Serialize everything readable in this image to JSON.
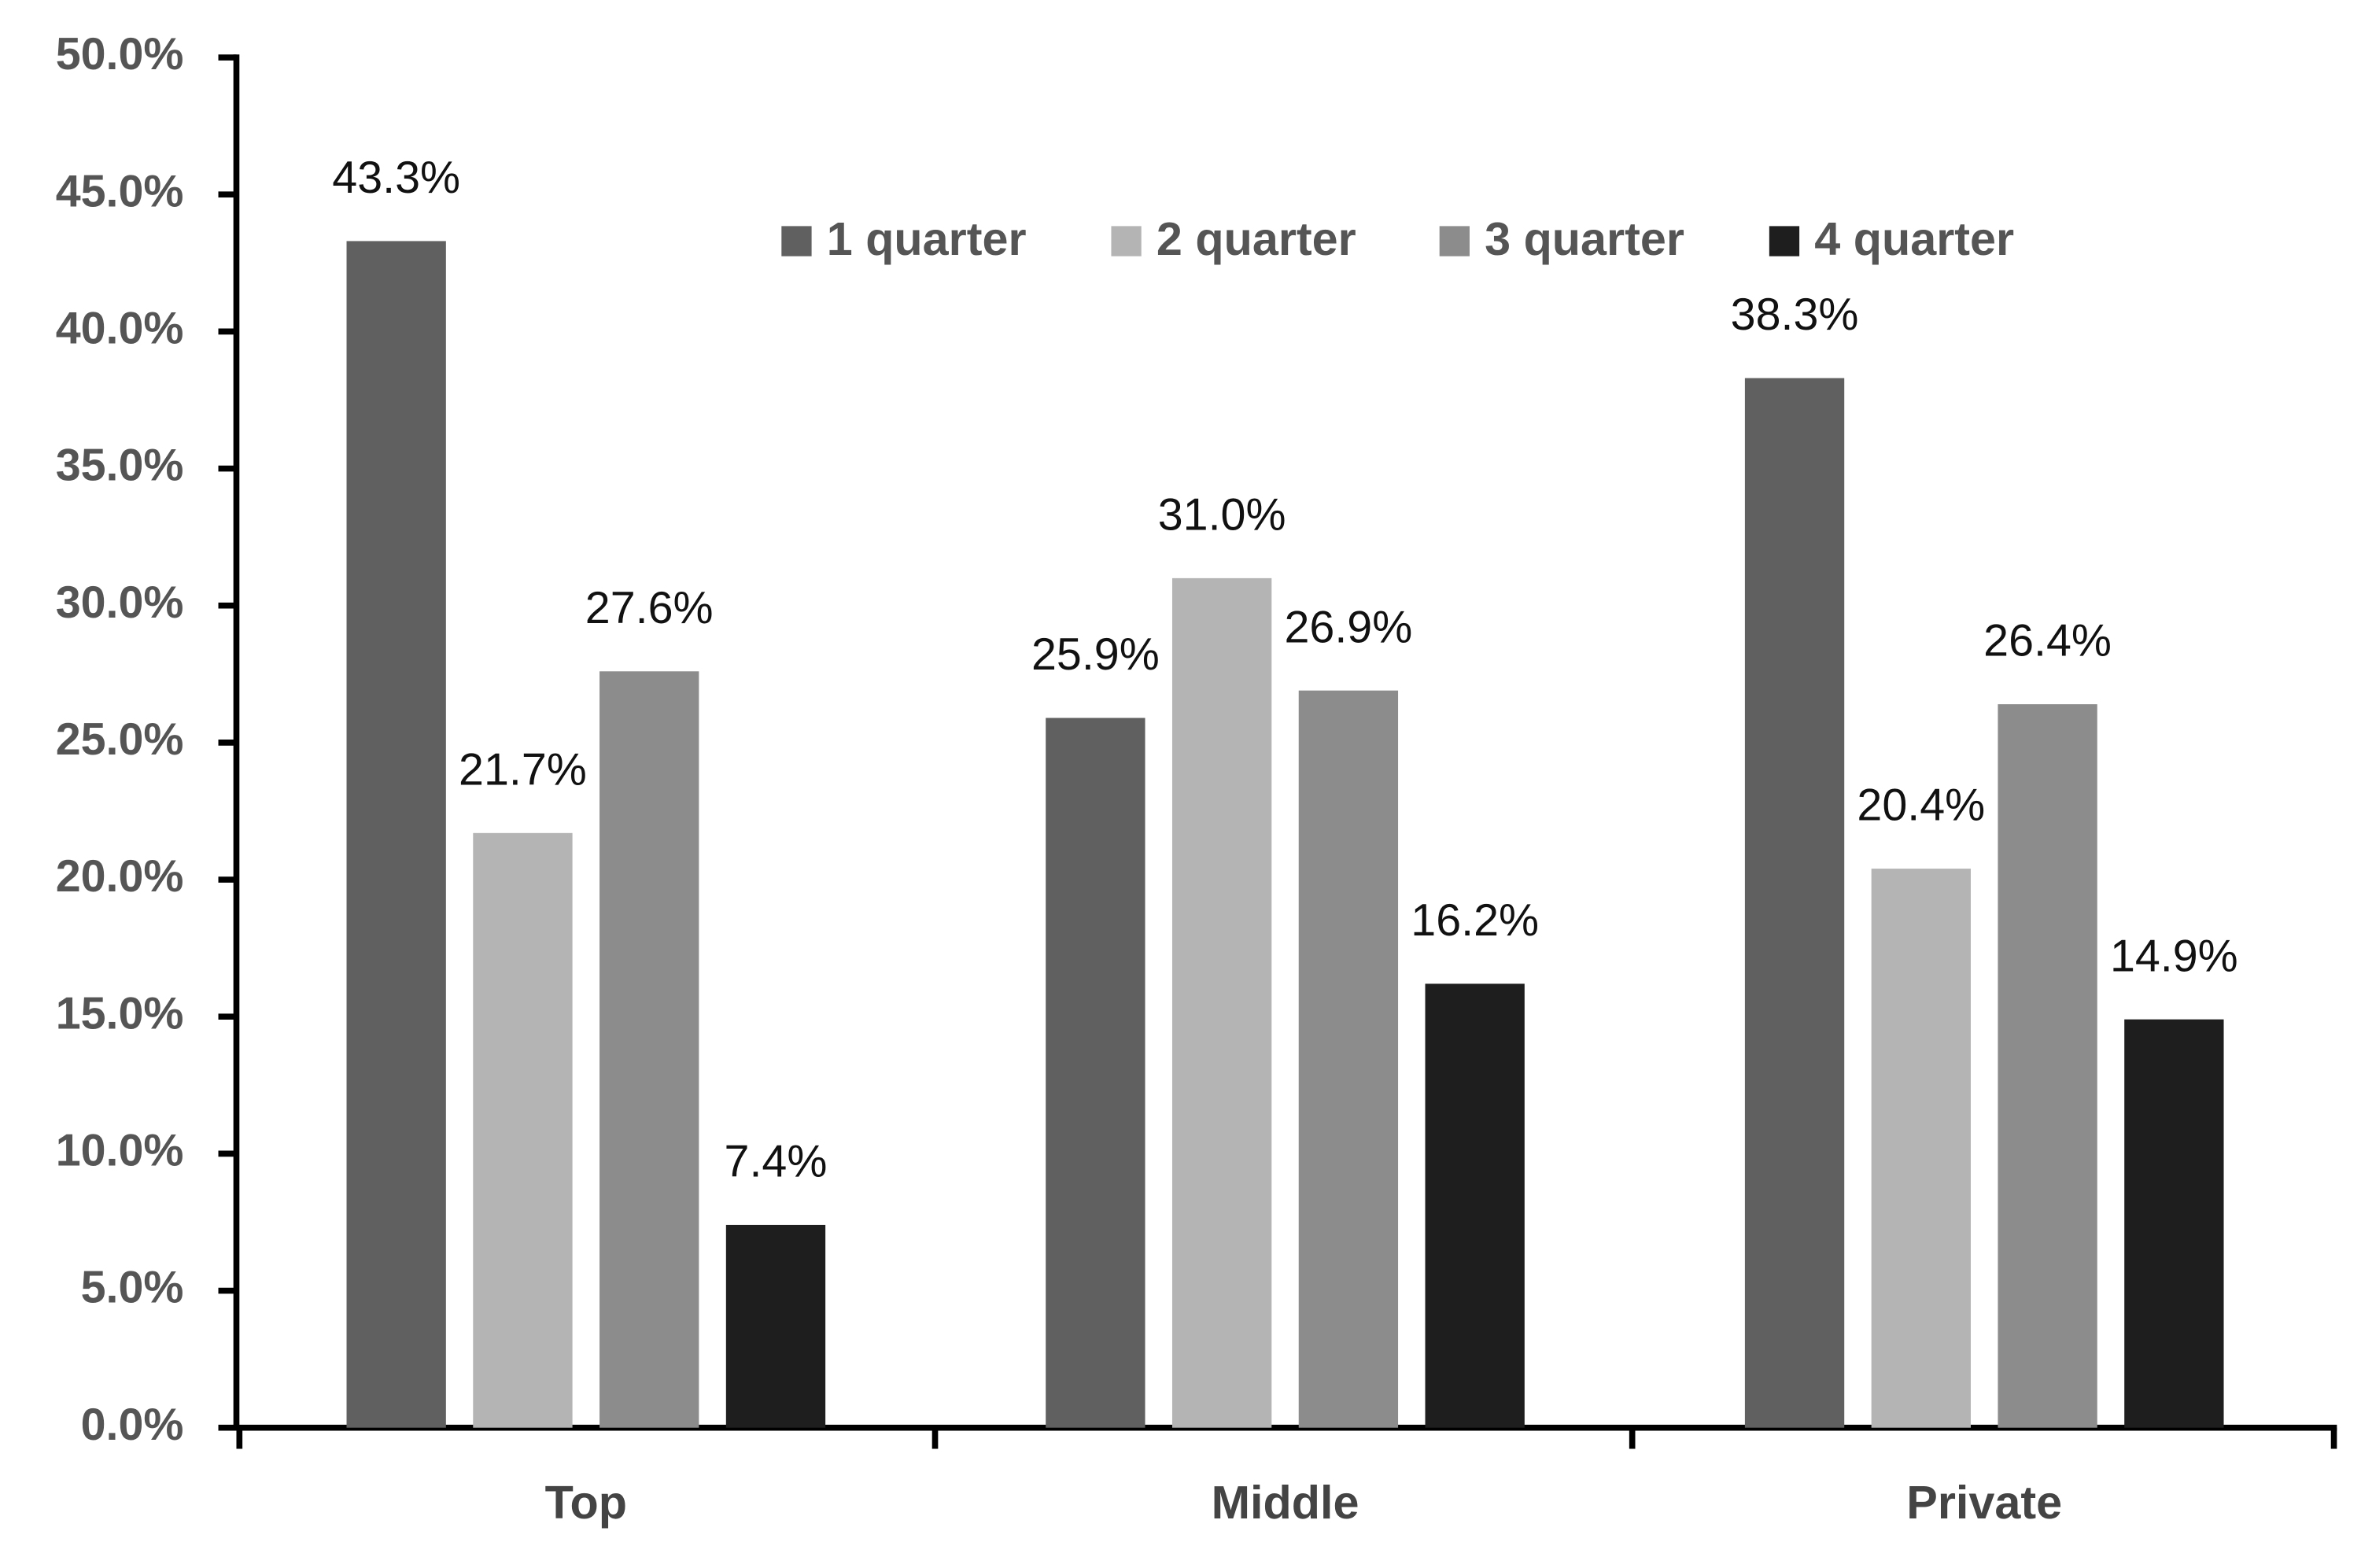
{
  "chart_data": {
    "type": "bar",
    "categories": [
      "Top",
      "Middle",
      "Private"
    ],
    "series": [
      {
        "name": "1 quarter",
        "color": "#606060",
        "values": [
          43.3,
          25.9,
          38.3
        ],
        "value_labels": [
          "43.3%",
          "25.9%",
          "38.3%"
        ]
      },
      {
        "name": "2 quarter",
        "color": "#b4b4b4",
        "values": [
          21.7,
          31.0,
          20.4
        ],
        "value_labels": [
          "21.7%",
          "31.0%",
          "20.4%"
        ]
      },
      {
        "name": "3 quarter",
        "color": "#8c8c8c",
        "values": [
          27.6,
          26.9,
          26.4
        ],
        "value_labels": [
          "27.6%",
          "26.9%",
          "26.4%"
        ]
      },
      {
        "name": "4 quarter",
        "color": "#1e1e1e",
        "values": [
          7.4,
          16.2,
          14.9
        ],
        "value_labels": [
          "7.4%",
          "16.2%",
          "14.9%"
        ]
      }
    ],
    "ylim": [
      0,
      50
    ],
    "yticks": [
      {
        "value": 0,
        "label": "0.0%"
      },
      {
        "value": 5,
        "label": "5.0%"
      },
      {
        "value": 10,
        "label": "10.0%"
      },
      {
        "value": 15,
        "label": "15.0%"
      },
      {
        "value": 20,
        "label": "20.0%"
      },
      {
        "value": 25,
        "label": "25.0%"
      },
      {
        "value": 30,
        "label": "30.0%"
      },
      {
        "value": 35,
        "label": "35.0%"
      },
      {
        "value": 40,
        "label": "40.0%"
      },
      {
        "value": 45,
        "label": "45.0%"
      },
      {
        "value": 50,
        "label": "50.0%"
      }
    ],
    "grid": false
  }
}
